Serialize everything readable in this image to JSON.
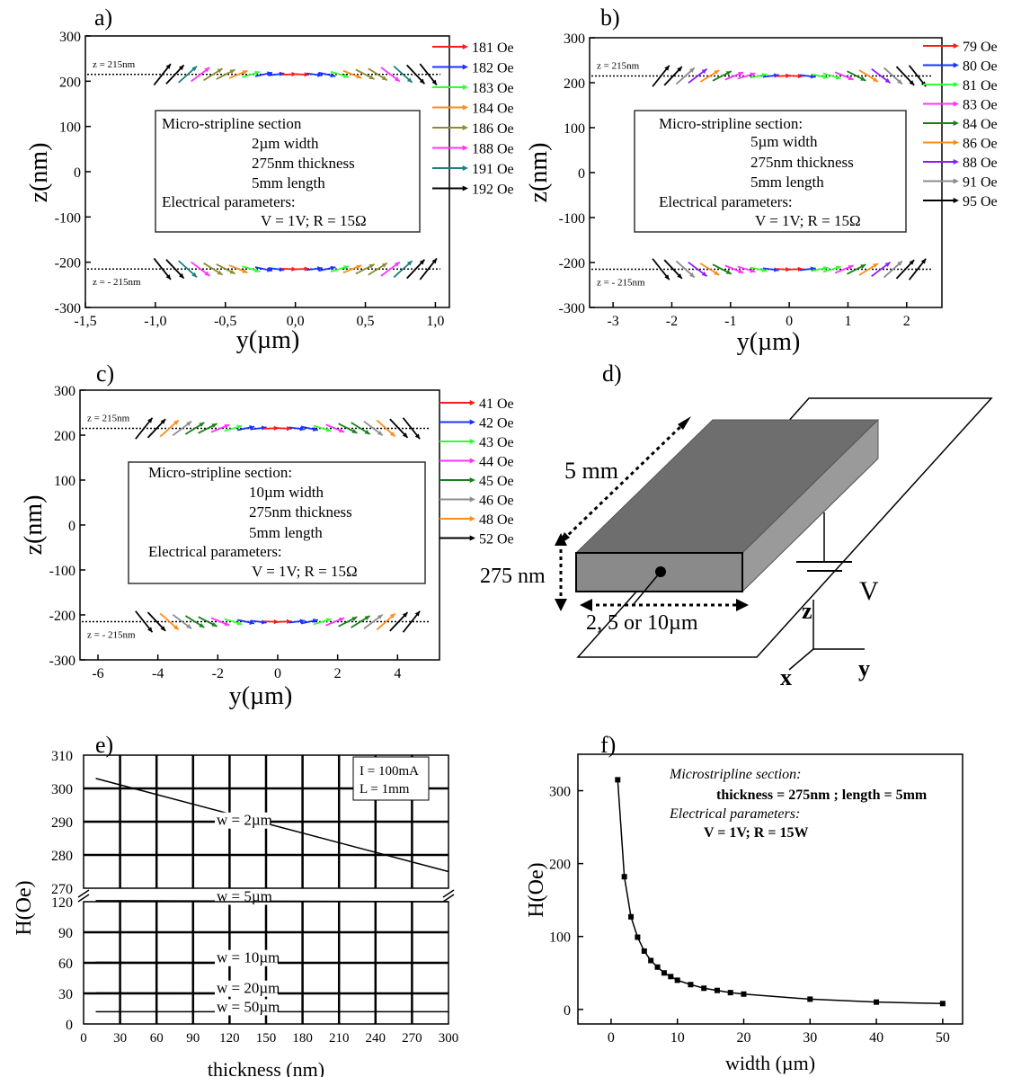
{
  "chart_data": [
    {
      "panel": "a)",
      "type": "scatter",
      "xlabel": "y(µm)",
      "ylabel": "z(nm)",
      "xlim": [
        -1.5,
        1.1
      ],
      "ylim": [
        -300,
        300
      ],
      "xticks": [
        "-1,5",
        "-1,0",
        "-0,5",
        "0,0",
        "0,5",
        "1,0"
      ],
      "xtick_values": [
        -1.5,
        -1.0,
        -0.5,
        0.0,
        0.5,
        1.0
      ],
      "yticks": [
        -300,
        -200,
        -100,
        0,
        100,
        200,
        300
      ],
      "surfaces": [
        {
          "z": 215,
          "label": "z = 215nm"
        },
        {
          "z": -215,
          "label": "z = - 215nm"
        }
      ],
      "half_width": 1.0,
      "legend": [
        {
          "label": "181 Oe",
          "color": "#ff1a1a"
        },
        {
          "label": "182 Oe",
          "color": "#1a33ff"
        },
        {
          "label": "183 Oe",
          "color": "#33ff33"
        },
        {
          "label": "184 Oe",
          "color": "#ff8c1a"
        },
        {
          "label": "186 Oe",
          "color": "#8c8c33"
        },
        {
          "label": "188 Oe",
          "color": "#ff33ff"
        },
        {
          "label": "191 Oe",
          "color": "#1a8080"
        },
        {
          "label": "192 Oe",
          "color": "#000000"
        }
      ],
      "info": [
        "Micro-stripline section",
        "2µm width",
        "275nm thickness",
        "5mm length",
        "Electrical parameters:",
        "V = 1V; R = 15Ω"
      ]
    },
    {
      "panel": "b)",
      "type": "scatter",
      "xlabel": "y(µm)",
      "ylabel": "z(nm)",
      "xlim": [
        -3.4,
        2.6
      ],
      "ylim": [
        -300,
        300
      ],
      "xticks": [
        "-3",
        "-2",
        "-1",
        "0",
        "1",
        "2"
      ],
      "xtick_values": [
        -3,
        -2,
        -1,
        0,
        1,
        2
      ],
      "yticks": [
        -300,
        -200,
        -100,
        0,
        100,
        200,
        300
      ],
      "surfaces": [
        {
          "z": 215,
          "label": "z = 215nm"
        },
        {
          "z": -215,
          "label": "z = - 215nm"
        }
      ],
      "half_width": 2.3,
      "legend": [
        {
          "label": "79 Oe",
          "color": "#ff1a1a"
        },
        {
          "label": "80 Oe",
          "color": "#1a33ff"
        },
        {
          "label": "81 Oe",
          "color": "#33ff33"
        },
        {
          "label": "83 Oe",
          "color": "#ff33ff"
        },
        {
          "label": "84 Oe",
          "color": "#1a801a"
        },
        {
          "label": "86 Oe",
          "color": "#ff8c1a"
        },
        {
          "label": "88 Oe",
          "color": "#8c1aff"
        },
        {
          "label": "91 Oe",
          "color": "#8c8c8c"
        },
        {
          "label": "95 Oe",
          "color": "#000000"
        }
      ],
      "info": [
        "Micro-stripline section:",
        "5µm width",
        "275nm thickness",
        "5mm length",
        "Electrical parameters:",
        "V = 1V; R = 15Ω"
      ]
    },
    {
      "panel": "c)",
      "type": "scatter",
      "xlabel": "y(µm)",
      "ylabel": "z(nm)",
      "xlim": [
        -6.6,
        5.4
      ],
      "ylim": [
        -300,
        300
      ],
      "xticks": [
        "-6",
        "-4",
        "-2",
        "0",
        "2",
        "4"
      ],
      "xtick_values": [
        -6,
        -4,
        -2,
        0,
        2,
        4
      ],
      "yticks": [
        -300,
        -200,
        -100,
        0,
        100,
        200,
        300
      ],
      "surfaces": [
        {
          "z": 215,
          "label": "z = 215nm"
        },
        {
          "z": -215,
          "label": "z = - 215nm"
        }
      ],
      "half_width": 4.7,
      "legend": [
        {
          "label": "41 Oe",
          "color": "#ff1a1a"
        },
        {
          "label": "42 Oe",
          "color": "#1a33ff"
        },
        {
          "label": "43 Oe",
          "color": "#33ff33"
        },
        {
          "label": "44 Oe",
          "color": "#ff33ff"
        },
        {
          "label": "45 Oe",
          "color": "#1a801a"
        },
        {
          "label": "46 Oe",
          "color": "#8c8c8c"
        },
        {
          "label": "48 Oe",
          "color": "#ff8c1a"
        },
        {
          "label": "52 Oe",
          "color": "#000000"
        }
      ],
      "info": [
        "Micro-stripline section:",
        "10µm width",
        "275nm thickness",
        "5mm length",
        "Electrical parameters:",
        "V = 1V; R = 15Ω"
      ]
    },
    {
      "panel": "e)",
      "type": "line",
      "xlabel": "thickness (nm)",
      "ylabel": "H(Oe)",
      "xlim": [
        0,
        300
      ],
      "xticks": [
        0,
        30,
        60,
        90,
        120,
        150,
        180,
        210,
        240,
        270,
        300
      ],
      "upper_ylim": [
        270,
        310
      ],
      "upper_yticks": [
        270,
        280,
        290,
        300,
        310
      ],
      "lower_ylim": [
        0,
        120
      ],
      "lower_yticks": [
        0,
        30,
        60,
        90,
        120
      ],
      "grid": true,
      "legend_box": [
        "I = 100mA",
        "L = 1mm"
      ],
      "series": [
        {
          "name": "w = 2µm",
          "x": [
            10,
            300
          ],
          "y": [
            303,
            275
          ]
        },
        {
          "name": "w = 5µm",
          "x": [
            10,
            300
          ],
          "y": [
            121,
            120
          ]
        },
        {
          "name": "w = 10µm",
          "x": [
            10,
            300
          ],
          "y": [
            60.5,
            60
          ]
        },
        {
          "name": "w = 20µm",
          "x": [
            10,
            300
          ],
          "y": [
            30.5,
            30
          ]
        },
        {
          "name": "w = 50µm",
          "x": [
            10,
            300
          ],
          "y": [
            12,
            12
          ]
        }
      ]
    },
    {
      "panel": "f)",
      "type": "line",
      "xlabel": "width (µm)",
      "ylabel": "H(Oe)",
      "xlim": [
        -5,
        53
      ],
      "ylim": [
        -20,
        350
      ],
      "xticks": [
        0,
        10,
        20,
        30,
        40,
        50
      ],
      "yticks": [
        0,
        100,
        200,
        300
      ],
      "info": [
        "Microstripline section:",
        "thickness = 275nm ; length = 5mm",
        "Electrical parameters:",
        "V = 1V; R = 15W"
      ],
      "x": [
        1,
        2,
        3,
        4,
        5,
        6,
        7,
        8,
        9,
        10,
        12,
        14,
        16,
        18,
        20,
        30,
        40,
        50
      ],
      "y": [
        315,
        182,
        127,
        99,
        80,
        67,
        58,
        50,
        45,
        40,
        34,
        29,
        26,
        23,
        21,
        14,
        10,
        8
      ]
    }
  ],
  "diagram_d": {
    "panel": "d)",
    "length_label": "5 mm",
    "thickness_label": "275 nm",
    "width_label": "2, 5 or 10µm",
    "voltage_label": "V",
    "axis_z": "z",
    "axis_y": "y",
    "axis_x": "x",
    "colors": {
      "top": "#6e6e6e",
      "side": "#9a9a9a",
      "front": "#8a8a8a"
    }
  }
}
